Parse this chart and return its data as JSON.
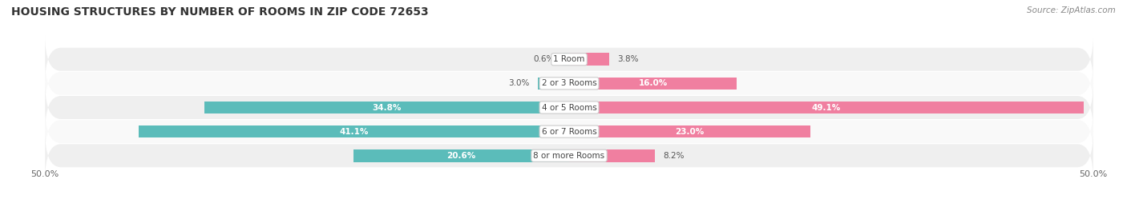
{
  "title": "HOUSING STRUCTURES BY NUMBER OF ROOMS IN ZIP CODE 72653",
  "source": "Source: ZipAtlas.com",
  "categories": [
    "1 Room",
    "2 or 3 Rooms",
    "4 or 5 Rooms",
    "6 or 7 Rooms",
    "8 or more Rooms"
  ],
  "owner_values": [
    0.6,
    3.0,
    34.8,
    41.1,
    20.6
  ],
  "renter_values": [
    3.8,
    16.0,
    49.1,
    23.0,
    8.2
  ],
  "owner_color": "#5bbcba",
  "renter_color": "#f07fa0",
  "row_colors": [
    "#efefef",
    "#f9f9f9"
  ],
  "axis_min": -50.0,
  "axis_max": 50.0,
  "title_fontsize": 10,
  "source_fontsize": 7.5,
  "bar_height": 0.52,
  "category_fontsize": 7.5,
  "value_fontsize": 7.5,
  "legend_fontsize": 8
}
